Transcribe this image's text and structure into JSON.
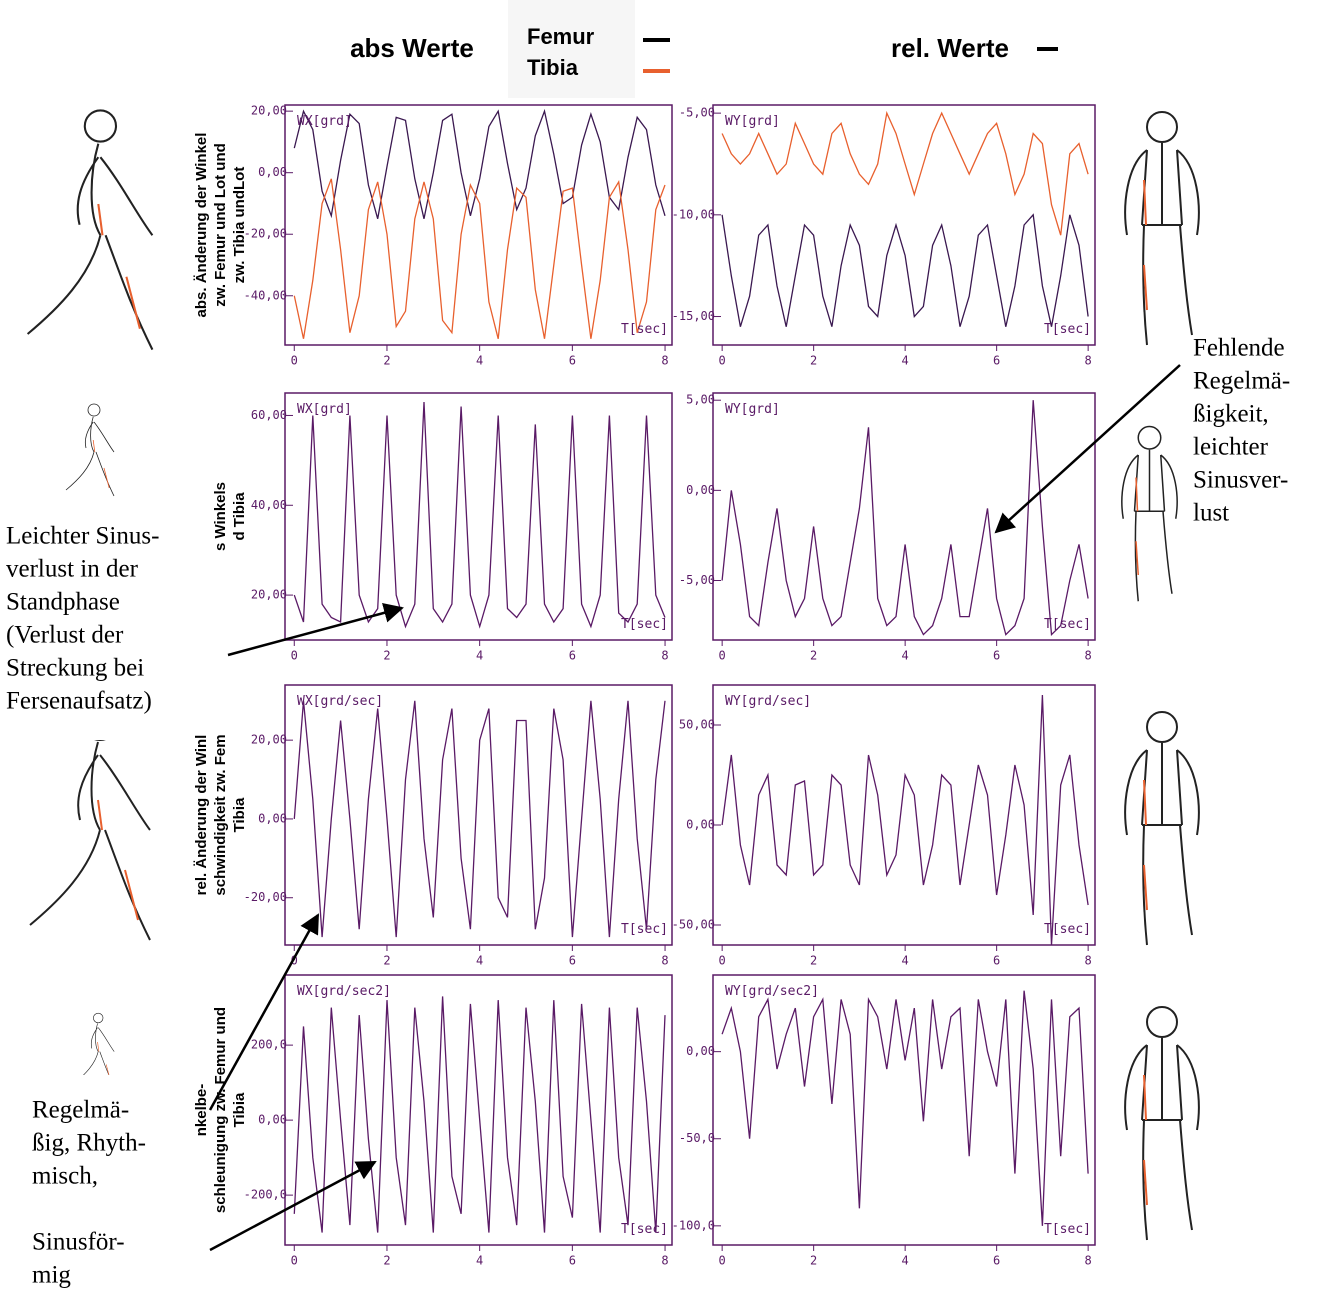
{
  "header": {
    "left_title": "abs Werte",
    "right_title": "rel. Werte"
  },
  "annotations": [
    {
      "lines": [
        "Leichter Sinus-",
        "verlust in der",
        "Standphase",
        "(Verlust der",
        "Streckung bei",
        "Fersenaufsatz)"
      ]
    },
    {
      "lines": [
        "Regelmä-",
        "ßig, Rhyth-",
        "misch,",
        "",
        "Sinusför-",
        "mig"
      ]
    },
    {
      "lines": [
        "Fehlende",
        "Regelmä-",
        "ßigkeit,",
        "leichter",
        "Sinusver-",
        "lust"
      ]
    }
  ],
  "chart_data": [
    {
      "type": "line",
      "ylabel_lines": [
        "abs. Änderung der Winkel",
        "zw. Femur und Lot und",
        "zw. Tibia undLot"
      ],
      "inner_label": "WX[grd]",
      "xlabel": "T[sec]",
      "x": [
        0,
        0.2,
        0.4,
        0.6,
        0.8,
        1,
        1.2,
        1.4,
        1.6,
        1.8,
        2,
        2.2,
        2.4,
        2.6,
        2.8,
        3,
        3.2,
        3.4,
        3.6,
        3.8,
        4,
        4.2,
        4.4,
        4.6,
        4.8,
        5,
        5.2,
        5.4,
        5.6,
        5.8,
        6,
        6.2,
        6.4,
        6.6,
        6.8,
        7,
        7.2,
        7.4,
        7.6,
        7.8,
        8
      ],
      "xlim": [
        -0.2,
        8.15
      ],
      "xticks": [
        0,
        2,
        4,
        6,
        8
      ],
      "ylim": [
        -56,
        22
      ],
      "yticks": [
        {
          "value": 20,
          "label": "20,00"
        },
        {
          "value": 0,
          "label": "0,00"
        },
        {
          "value": -20,
          "label": "-20,00"
        },
        {
          "value": -40,
          "label": "-40,00"
        }
      ],
      "series": [
        {
          "name": "Femur",
          "color": "#3a1850",
          "values": [
            8,
            20,
            14,
            -6,
            -14,
            4,
            19,
            16,
            -4,
            -15,
            2,
            18,
            17,
            -2,
            -15,
            0,
            17,
            19,
            0,
            -14,
            -2,
            15,
            20,
            3,
            -12,
            -5,
            12,
            20,
            6,
            -10,
            -8,
            9,
            19,
            10,
            -8,
            -12,
            5,
            18,
            14,
            -4,
            -14
          ]
        },
        {
          "name": "Tibia",
          "color": "#e8602e",
          "values": [
            -40,
            -54,
            -35,
            -10,
            -2,
            -25,
            -52,
            -40,
            -12,
            -3,
            -20,
            -50,
            -45,
            -15,
            -3,
            -15,
            -48,
            -52,
            -20,
            -4,
            -10,
            -42,
            -54,
            -25,
            -5,
            -8,
            -38,
            -54,
            -30,
            -6,
            -5,
            -30,
            -54,
            -35,
            -8,
            -3,
            -25,
            -52,
            -42,
            -12,
            -4
          ]
        }
      ]
    },
    {
      "type": "line",
      "inner_label": "WY[grd]",
      "xlabel": "T[sec]",
      "x": [
        0,
        0.2,
        0.4,
        0.6,
        0.8,
        1,
        1.2,
        1.4,
        1.6,
        1.8,
        2,
        2.2,
        2.4,
        2.6,
        2.8,
        3,
        3.2,
        3.4,
        3.6,
        3.8,
        4,
        4.2,
        4.4,
        4.6,
        4.8,
        5,
        5.2,
        5.4,
        5.6,
        5.8,
        6,
        6.2,
        6.4,
        6.6,
        6.8,
        7,
        7.2,
        7.4,
        7.6,
        7.8,
        8
      ],
      "xlim": [
        -0.2,
        8.15
      ],
      "xticks": [
        0,
        2,
        4,
        6,
        8
      ],
      "ylim": [
        -16.4,
        -4.6
      ],
      "yticks": [
        {
          "value": -5,
          "label": "-5,00"
        },
        {
          "value": -10,
          "label": "-10,00"
        },
        {
          "value": -15,
          "label": "-15,00"
        }
      ],
      "series": [
        {
          "color": "#3a1850",
          "values": [
            -10,
            -13,
            -15.5,
            -14,
            -11,
            -10.5,
            -13.5,
            -15.5,
            -13,
            -10.5,
            -11,
            -14,
            -15.5,
            -12.5,
            -10.5,
            -11.5,
            -14.5,
            -15,
            -12,
            -10.5,
            -12,
            -15,
            -14.5,
            -11.5,
            -10.5,
            -12.5,
            -15.5,
            -14,
            -11,
            -10.5,
            -13,
            -15.5,
            -13.5,
            -10.5,
            -10,
            -13.5,
            -15.5,
            -13,
            -10,
            -11.5,
            -15
          ]
        },
        {
          "color": "#e8602e",
          "values": [
            -6,
            -7,
            -7.5,
            -7,
            -6,
            -7,
            -8,
            -7.5,
            -5.5,
            -6.5,
            -7.5,
            -8,
            -6,
            -5.5,
            -7,
            -8,
            -8.5,
            -7.5,
            -5,
            -6,
            -7.5,
            -9,
            -7.5,
            -6,
            -5,
            -6,
            -7,
            -8,
            -7,
            -6,
            -5.5,
            -7,
            -9,
            -8,
            -6,
            -6.5,
            -9.5,
            -11,
            -7,
            -6.5,
            -8
          ]
        }
      ]
    },
    {
      "type": "line",
      "ylabel_lines": [
        "s Winkels",
        "d Tibia"
      ],
      "inner_label": "WX[grd]",
      "xlabel": "T[sec]",
      "x": [
        0,
        0.2,
        0.4,
        0.6,
        0.8,
        1,
        1.2,
        1.4,
        1.6,
        1.8,
        2,
        2.2,
        2.4,
        2.6,
        2.8,
        3,
        3.2,
        3.4,
        3.6,
        3.8,
        4,
        4.2,
        4.4,
        4.6,
        4.8,
        5,
        5.2,
        5.4,
        5.6,
        5.8,
        6,
        6.2,
        6.4,
        6.6,
        6.8,
        7,
        7.2,
        7.4,
        7.6,
        7.8,
        8
      ],
      "xlim": [
        -0.2,
        8.15
      ],
      "xticks": [
        0,
        2,
        4,
        6,
        8
      ],
      "ylim": [
        10,
        65
      ],
      "yticks": [
        {
          "value": 60,
          "label": "60,00"
        },
        {
          "value": 40,
          "label": "40,00"
        },
        {
          "value": 20,
          "label": "20,00"
        }
      ],
      "series": [
        {
          "color": "#5a1a66",
          "values": [
            20,
            14,
            60,
            18,
            15,
            14,
            60,
            20,
            14,
            17,
            60,
            20,
            13,
            18,
            63,
            17,
            14,
            18,
            62,
            20,
            13,
            20,
            60,
            17,
            15,
            18,
            58,
            18,
            14,
            17,
            60,
            18,
            13,
            20,
            60,
            16,
            14,
            18,
            60,
            20,
            15
          ]
        }
      ]
    },
    {
      "type": "line",
      "inner_label": "WY[grd]",
      "xlabel": "T[sec]",
      "x": [
        0,
        0.2,
        0.4,
        0.6,
        0.8,
        1,
        1.2,
        1.4,
        1.6,
        1.8,
        2,
        2.2,
        2.4,
        2.6,
        2.8,
        3,
        3.2,
        3.4,
        3.6,
        3.8,
        4,
        4.2,
        4.4,
        4.6,
        4.8,
        5,
        5.2,
        5.4,
        5.6,
        5.8,
        6,
        6.2,
        6.4,
        6.6,
        6.8,
        7,
        7.2,
        7.4,
        7.6,
        7.8,
        8
      ],
      "xlim": [
        -0.2,
        8.15
      ],
      "xticks": [
        0,
        2,
        4,
        6,
        8
      ],
      "ylim": [
        -8.3,
        5.4
      ],
      "yticks": [
        {
          "value": 5,
          "label": "5,00"
        },
        {
          "value": 0,
          "label": "0,00"
        },
        {
          "value": -5,
          "label": "-5,00"
        }
      ],
      "series": [
        {
          "color": "#5a1a66",
          "values": [
            -5,
            0,
            -3,
            -7,
            -7.5,
            -4,
            -1,
            -5,
            -7,
            -6,
            -2,
            -6,
            -7.5,
            -7,
            -4,
            -1,
            3.5,
            -6,
            -7.5,
            -7,
            -3,
            -7,
            -8,
            -7.5,
            -6,
            -3,
            -7,
            -7,
            -4,
            -1,
            -6,
            -8,
            -7.5,
            -6,
            5,
            -2,
            -8,
            -7.5,
            -5,
            -3,
            -6
          ]
        }
      ]
    },
    {
      "type": "line",
      "ylabel_lines": [
        "rel. Änderung der Winl",
        "schwindigkeit zw. Fem",
        "Tibia"
      ],
      "inner_label": "WX[grd/sec]",
      "xlabel": "T[sec]",
      "x": [
        0,
        0.2,
        0.4,
        0.6,
        0.8,
        1,
        1.2,
        1.4,
        1.6,
        1.8,
        2,
        2.2,
        2.4,
        2.6,
        2.8,
        3,
        3.2,
        3.4,
        3.6,
        3.8,
        4,
        4.2,
        4.4,
        4.6,
        4.8,
        5,
        5.2,
        5.4,
        5.6,
        5.8,
        6,
        6.2,
        6.4,
        6.6,
        6.8,
        7,
        7.2,
        7.4,
        7.6,
        7.8,
        8
      ],
      "xlim": [
        -0.2,
        8.15
      ],
      "xticks": [
        0,
        2,
        4,
        6,
        8
      ],
      "ylim": [
        -32,
        34
      ],
      "yticks": [
        {
          "value": 20,
          "label": "20,00"
        },
        {
          "value": 0,
          "label": "0,00"
        },
        {
          "value": -20,
          "label": "-20,00"
        }
      ],
      "series": [
        {
          "color": "#5a1a66",
          "values": [
            0,
            30,
            5,
            -30,
            0,
            25,
            0,
            -28,
            5,
            28,
            0,
            -30,
            10,
            30,
            -5,
            -25,
            15,
            28,
            -10,
            -28,
            20,
            28,
            -20,
            -25,
            25,
            25,
            -28,
            -15,
            28,
            15,
            -30,
            0,
            30,
            5,
            -30,
            5,
            30,
            -5,
            -28,
            10,
            30
          ]
        }
      ]
    },
    {
      "type": "line",
      "inner_label": "WY[grd/sec]",
      "xlabel": "T[sec]",
      "x": [
        0,
        0.2,
        0.4,
        0.6,
        0.8,
        1,
        1.2,
        1.4,
        1.6,
        1.8,
        2,
        2.2,
        2.4,
        2.6,
        2.8,
        3,
        3.2,
        3.4,
        3.6,
        3.8,
        4,
        4.2,
        4.4,
        4.6,
        4.8,
        5,
        5.2,
        5.4,
        5.6,
        5.8,
        6,
        6.2,
        6.4,
        6.6,
        6.8,
        7,
        7.2,
        7.4,
        7.6,
        7.8,
        8
      ],
      "xlim": [
        -0.2,
        8.15
      ],
      "xticks": [
        0,
        2,
        4,
        6,
        8
      ],
      "ylim": [
        -60,
        70
      ],
      "yticks": [
        {
          "value": 50,
          "label": "50,00"
        },
        {
          "value": 0,
          "label": "0,00"
        },
        {
          "value": -50,
          "label": "-50,00"
        }
      ],
      "series": [
        {
          "color": "#5a1a66",
          "values": [
            0,
            35,
            -10,
            -30,
            15,
            25,
            -20,
            -25,
            20,
            22,
            -25,
            -20,
            25,
            20,
            -20,
            -30,
            35,
            15,
            -25,
            -15,
            25,
            15,
            -30,
            -10,
            25,
            20,
            -30,
            0,
            30,
            15,
            -35,
            -5,
            30,
            10,
            -45,
            65,
            -60,
            20,
            35,
            -10,
            -40
          ]
        }
      ]
    },
    {
      "type": "line",
      "ylabel_lines": [
        "nkelbe-",
        "schleunigung zw. Femur und",
        "Tibia"
      ],
      "inner_label": "WX[grd/sec2]",
      "xlabel": "T[sec]",
      "x": [
        0,
        0.2,
        0.4,
        0.6,
        0.8,
        1,
        1.2,
        1.4,
        1.6,
        1.8,
        2,
        2.2,
        2.4,
        2.6,
        2.8,
        3,
        3.2,
        3.4,
        3.6,
        3.8,
        4,
        4.2,
        4.4,
        4.6,
        4.8,
        5,
        5.2,
        5.4,
        5.6,
        5.8,
        6,
        6.2,
        6.4,
        6.6,
        6.8,
        7,
        7.2,
        7.4,
        7.6,
        7.8,
        8
      ],
      "xlim": [
        -0.2,
        8.15
      ],
      "xticks": [
        0,
        2,
        4,
        6,
        8
      ],
      "ylim": [
        -333,
        387
      ],
      "yticks": [
        {
          "value": 200,
          "label": "200,0"
        },
        {
          "value": 0,
          "label": "0,00"
        },
        {
          "value": -200,
          "label": "-200,0"
        }
      ],
      "series": [
        {
          "color": "#5a1a66",
          "values": [
            -250,
            250,
            -100,
            -300,
            300,
            0,
            -280,
            280,
            -50,
            -300,
            320,
            -100,
            -280,
            300,
            50,
            -300,
            330,
            -150,
            -250,
            310,
            0,
            -300,
            320,
            -100,
            -280,
            300,
            50,
            -300,
            320,
            -150,
            -260,
            310,
            0,
            -300,
            300,
            -100,
            -280,
            300,
            50,
            -300,
            280
          ]
        }
      ]
    },
    {
      "type": "line",
      "inner_label": "WY[grd/sec2]",
      "xlabel": "T[sec]",
      "x": [
        0,
        0.2,
        0.4,
        0.6,
        0.8,
        1,
        1.2,
        1.4,
        1.6,
        1.8,
        2,
        2.2,
        2.4,
        2.6,
        2.8,
        3,
        3.2,
        3.4,
        3.6,
        3.8,
        4,
        4.2,
        4.4,
        4.6,
        4.8,
        5,
        5.2,
        5.4,
        5.6,
        5.8,
        6,
        6.2,
        6.4,
        6.6,
        6.8,
        7,
        7.2,
        7.4,
        7.6,
        7.8,
        8
      ],
      "xlim": [
        -0.2,
        8.15
      ],
      "xticks": [
        0,
        2,
        4,
        6,
        8
      ],
      "ylim": [
        -111,
        44
      ],
      "yticks": [
        {
          "value": 0,
          "label": "0,00"
        },
        {
          "value": -50,
          "label": "-50,0"
        },
        {
          "value": -100,
          "label": "-100,0"
        }
      ],
      "series": [
        {
          "color": "#5a1a66",
          "values": [
            10,
            25,
            0,
            -50,
            20,
            30,
            -10,
            10,
            25,
            -20,
            20,
            30,
            -30,
            30,
            10,
            -90,
            30,
            20,
            -10,
            30,
            -5,
            25,
            -40,
            30,
            -10,
            20,
            25,
            -60,
            30,
            0,
            -20,
            30,
            -70,
            35,
            -10,
            -100,
            30,
            -60,
            20,
            25,
            -70
          ]
        }
      ]
    }
  ]
}
